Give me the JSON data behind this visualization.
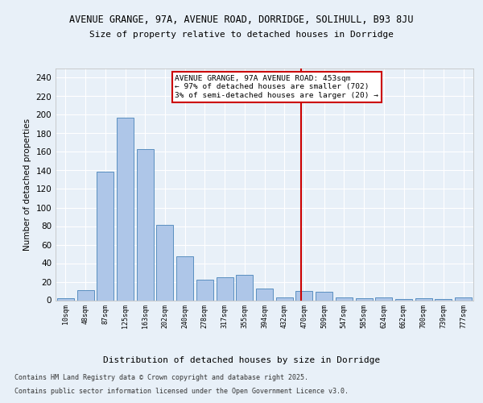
{
  "title1": "AVENUE GRANGE, 97A, AVENUE ROAD, DORRIDGE, SOLIHULL, B93 8JU",
  "title2": "Size of property relative to detached houses in Dorridge",
  "xlabel": "Distribution of detached houses by size in Dorridge",
  "ylabel": "Number of detached properties",
  "bin_labels": [
    "10sqm",
    "48sqm",
    "87sqm",
    "125sqm",
    "163sqm",
    "202sqm",
    "240sqm",
    "278sqm",
    "317sqm",
    "355sqm",
    "394sqm",
    "432sqm",
    "470sqm",
    "509sqm",
    "547sqm",
    "585sqm",
    "624sqm",
    "662sqm",
    "700sqm",
    "739sqm",
    "777sqm"
  ],
  "bar_values": [
    2,
    11,
    139,
    197,
    163,
    81,
    47,
    22,
    25,
    27,
    13,
    3,
    10,
    9,
    3,
    2,
    3,
    1,
    2,
    1,
    3
  ],
  "bar_color": "#aec6e8",
  "bar_edge_color": "#5a8fc0",
  "vline_x_index": 11.85,
  "vline_color": "#cc0000",
  "annotation_text": "AVENUE GRANGE, 97A AVENUE ROAD: 453sqm\n← 97% of detached houses are smaller (702)\n3% of semi-detached houses are larger (20) →",
  "annotation_box_color": "#ffffff",
  "annotation_box_edge": "#cc0000",
  "ylim": [
    0,
    250
  ],
  "yticks": [
    0,
    20,
    40,
    60,
    80,
    100,
    120,
    140,
    160,
    180,
    200,
    220,
    240
  ],
  "footnote1": "Contains HM Land Registry data © Crown copyright and database right 2025.",
  "footnote2": "Contains public sector information licensed under the Open Government Licence v3.0.",
  "bg_color": "#e8f0f8",
  "plot_bg_color": "#e8f0f8"
}
